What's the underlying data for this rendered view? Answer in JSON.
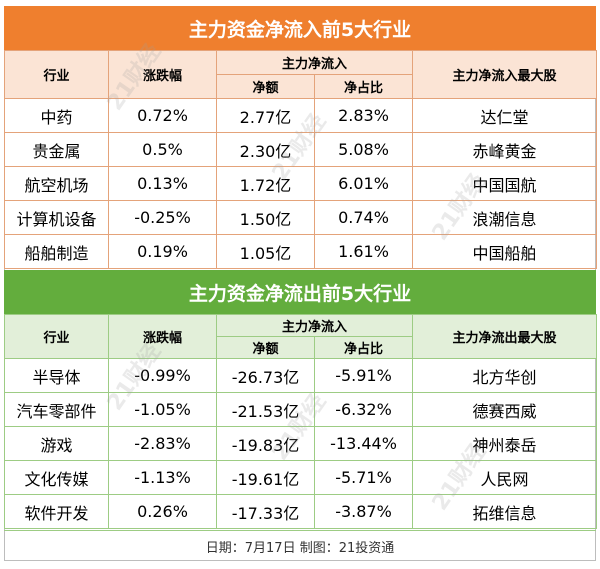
{
  "inflow": {
    "title": "主力资金净流入前5大行业",
    "headers": {
      "industry": "行业",
      "change": "涨跌幅",
      "main_net": "主力净流入",
      "amount": "净额",
      "ratio": "净占比",
      "top_stock": "主力净流入最大股"
    },
    "rows": [
      {
        "industry": "中药",
        "change": "0.72%",
        "amount": "2.77亿",
        "ratio": "2.83%",
        "stock": "达仁堂"
      },
      {
        "industry": "贵金属",
        "change": "0.5%",
        "amount": "2.30亿",
        "ratio": "5.08%",
        "stock": "赤峰黄金"
      },
      {
        "industry": "航空机场",
        "change": "0.13%",
        "amount": "1.72亿",
        "ratio": "6.01%",
        "stock": "中国国航"
      },
      {
        "industry": "计算机设备",
        "change": "-0.25%",
        "amount": "1.50亿",
        "ratio": "0.74%",
        "stock": "浪潮信息"
      },
      {
        "industry": "船舶制造",
        "change": "0.19%",
        "amount": "1.05亿",
        "ratio": "1.61%",
        "stock": "中国船舶"
      }
    ],
    "colors": {
      "banner": "#ef7f2e",
      "header_bg": "#fbe4d5"
    }
  },
  "outflow": {
    "title": "主力资金净流出前5大行业",
    "headers": {
      "industry": "行业",
      "change": "涨跌幅",
      "main_net": "主力净流入",
      "amount": "净额",
      "ratio": "净占比",
      "top_stock": "主力净流出最大股"
    },
    "rows": [
      {
        "industry": "半导体",
        "change": "-0.99%",
        "amount": "-26.73亿",
        "ratio": "-5.91%",
        "stock": "北方华创"
      },
      {
        "industry": "汽车零部件",
        "change": "-1.05%",
        "amount": "-21.53亿",
        "ratio": "-6.32%",
        "stock": "德赛西威"
      },
      {
        "industry": "游戏",
        "change": "-2.83%",
        "amount": "-19.83亿",
        "ratio": "-13.44%",
        "stock": "神州泰岳"
      },
      {
        "industry": "文化传媒",
        "change": "-1.13%",
        "amount": "-19.61亿",
        "ratio": "-5.71%",
        "stock": "人民网"
      },
      {
        "industry": "软件开发",
        "change": "0.26%",
        "amount": "-17.33亿",
        "ratio": "-3.87%",
        "stock": "拓维信息"
      }
    ],
    "colors": {
      "banner": "#63ad3d",
      "header_bg": "#e2efd9"
    }
  },
  "footer": "日期：7月17日 制图：21投资通",
  "watermark": "21财经"
}
